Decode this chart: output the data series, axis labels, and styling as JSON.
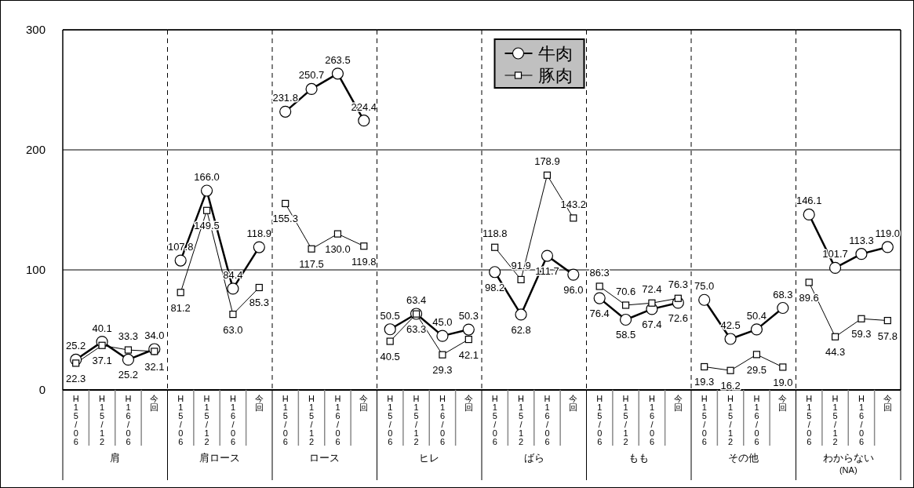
{
  "chart_data": [
    {
      "type": "line",
      "xlabel": "肩",
      "categories": [
        "H15/06",
        "H15/12",
        "H16/06",
        "今回"
      ],
      "ylim": [
        0,
        300
      ],
      "yticks": [
        0,
        100,
        200,
        300
      ],
      "grid": "y",
      "series": [
        {
          "color": "#000000",
          "marker": "circle",
          "values": [
            25.2,
            40.1,
            25.2,
            34.0
          ],
          "value_labels": [
            "25.2",
            "40.1",
            "25.2",
            "34.0"
          ]
        },
        {
          "color": "#000000",
          "marker": "square",
          "values": [
            22.3,
            37.1,
            33.3,
            32.1
          ],
          "value_labels": [
            "22.3",
            "37.1",
            "33.3",
            "32.1"
          ]
        }
      ]
    },
    {
      "type": "line",
      "xlabel": "肩ロース",
      "categories": [
        "H15/06",
        "H15/12",
        "H16/06",
        "今回"
      ],
      "ylim": [
        0,
        300
      ],
      "yticks": [
        0,
        100,
        200,
        300
      ],
      "grid": "y",
      "tick_labels": "x",
      "series": [
        {
          "color": "#000000",
          "marker": "circle",
          "values": [
            107.8,
            166.0,
            84.4,
            118.9
          ],
          "value_labels": [
            "107.8",
            "166.0",
            "84.4",
            "118.9"
          ]
        },
        {
          "color": "#000000",
          "marker": "square",
          "values": [
            81.2,
            149.5,
            63.0,
            85.3
          ],
          "value_labels": [
            "81.2",
            "149.5",
            "63.0",
            "85.3"
          ]
        }
      ]
    },
    {
      "type": "line",
      "xlabel": "ロース",
      "categories": [
        "H15/06",
        "H15/12",
        "H16/06",
        "今回"
      ],
      "ylim": [
        0,
        300
      ],
      "yticks": [
        0,
        100,
        200,
        300
      ],
      "grid": "y",
      "tick_labels": "x",
      "series": [
        {
          "color": "#000000",
          "marker": "circle",
          "values": [
            231.8,
            250.7,
            263.5,
            224.4
          ],
          "value_labels": [
            "231.8",
            "250.7",
            "263.5",
            "224.4"
          ]
        },
        {
          "color": "#000000",
          "marker": "square",
          "values": [
            155.3,
            117.5,
            130.0,
            119.8
          ],
          "value_labels": [
            "155.3",
            "117.5",
            "130.0",
            "119.8"
          ]
        }
      ]
    },
    {
      "type": "line",
      "xlabel": "ヒレ",
      "categories": [
        "H15/06",
        "H15/12",
        "H16/06",
        "今回"
      ],
      "ylim": [
        0,
        300
      ],
      "yticks": [
        0,
        100,
        200,
        300
      ],
      "grid": "y",
      "tick_labels": "x",
      "series": [
        {
          "color": "#000000",
          "marker": "circle",
          "values": [
            50.5,
            63.4,
            45.0,
            50.3
          ],
          "value_labels": [
            "50.5",
            "63.4",
            "45.0",
            "50.3"
          ]
        },
        {
          "color": "#000000",
          "marker": "square",
          "values": [
            40.5,
            63.3,
            29.3,
            42.1
          ],
          "value_labels": [
            "40.5",
            "63.3",
            "29.3",
            "42.1"
          ]
        }
      ]
    },
    {
      "type": "line",
      "xlabel": "ばら",
      "categories": [
        "H15/06",
        "H15/12",
        "H16/06",
        "今回"
      ],
      "ylim": [
        0,
        300
      ],
      "yticks": [
        0,
        100,
        200,
        300
      ],
      "grid": "y",
      "tick_labels": "x",
      "legend": "top right",
      "series": [
        {
          "name": "牛肉",
          "color": "#000000",
          "marker": "circle",
          "values": [
            98.2,
            62.8,
            111.7,
            96.0
          ],
          "value_labels": [
            "98.2",
            "62.8",
            "111.7",
            "96.0"
          ]
        },
        {
          "name": "豚肉",
          "color": "#000000",
          "marker": "square",
          "values": [
            118.8,
            91.9,
            178.9,
            143.2
          ],
          "value_labels": [
            "118.8",
            "91.9",
            "178.9",
            "143.2"
          ]
        }
      ]
    },
    {
      "type": "line",
      "xlabel": "もも",
      "categories": [
        "H15/06",
        "H15/12",
        "H16/06",
        "今回"
      ],
      "ylim": [
        0,
        300
      ],
      "yticks": [
        0,
        100,
        200,
        300
      ],
      "grid": "y",
      "tick_labels": "x",
      "series": [
        {
          "color": "#000000",
          "marker": "circle",
          "values": [
            76.4,
            58.5,
            67.4,
            72.6
          ],
          "value_labels": [
            "76.4",
            "58.5",
            "67.4",
            "72.6"
          ]
        },
        {
          "color": "#000000",
          "marker": "square",
          "values": [
            86.3,
            70.6,
            72.4,
            76.3
          ],
          "value_labels": [
            "86.3",
            "70.6",
            "72.4",
            "76.3"
          ]
        }
      ]
    },
    {
      "type": "line",
      "xlabel": "その他",
      "categories": [
        "H15/06",
        "H15/12",
        "H16/06",
        "今回"
      ],
      "ylim": [
        0,
        300
      ],
      "yticks": [
        0,
        100,
        200,
        300
      ],
      "grid": "y",
      "tick_labels": "x",
      "series": [
        {
          "color": "#000000",
          "marker": "circle",
          "values": [
            75.0,
            42.5,
            50.4,
            68.3
          ],
          "value_labels": [
            "75.0",
            "42.5",
            "50.4",
            "68.3"
          ]
        },
        {
          "color": "#000000",
          "marker": "square",
          "values": [
            19.3,
            16.2,
            29.5,
            19.0
          ],
          "value_labels": [
            "19.3",
            "16.2",
            "29.5",
            "19.0"
          ]
        }
      ]
    },
    {
      "type": "line",
      "xlabel": "わからない\n(NA)",
      "categories": [
        "H15/06",
        "H15/12",
        "H16/06",
        "今回"
      ],
      "ylim": [
        0,
        300
      ],
      "yticks": [
        0,
        100,
        200,
        300
      ],
      "grid": "y",
      "tick_labels": "x",
      "series": [
        {
          "color": "#000000",
          "marker": "circle",
          "values": [
            146.1,
            101.7,
            113.3,
            119.0
          ],
          "value_labels": [
            "146.1",
            "101.7",
            "113.3",
            "119.0"
          ]
        },
        {
          "color": "#000000",
          "marker": "square",
          "values": [
            89.6,
            44.3,
            59.3,
            57.8
          ],
          "value_labels": [
            "89.6",
            "44.3",
            "59.3",
            "57.8"
          ]
        }
      ]
    }
  ]
}
